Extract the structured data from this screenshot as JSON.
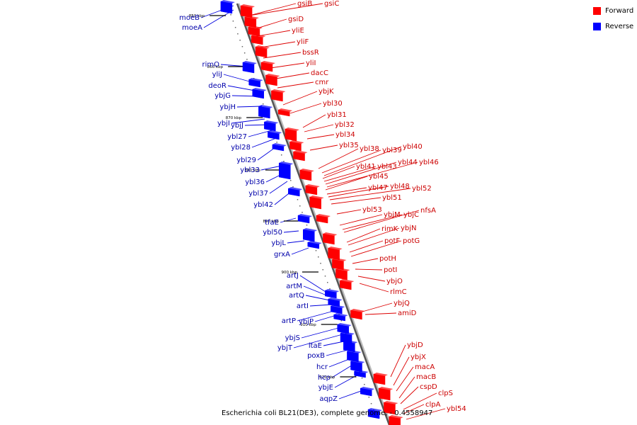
{
  "legend": {
    "forward_label": "Forward",
    "reverse_label": "Reverse",
    "forward_color": "#ff0000",
    "reverse_color": "#0000ff"
  },
  "caption": "Escherichia coli BL21(DE3), complete genome, - 0.4558947",
  "ticks": [
    "850 kbp",
    "860 kbp",
    "870 kbp",
    "880 kbp",
    "890 kbp",
    "900 kbp",
    "910 kbp",
    "920 kbp"
  ],
  "forward_genes": [
    "gsiB",
    "gsiC",
    "gsiD",
    "yliE",
    "yliF",
    "bssR",
    "yliI",
    "dacC",
    "cmr",
    "ybjK",
    "ybl30",
    "ybl31",
    "ybl32",
    "ybl34",
    "ybl35",
    "ybl38",
    "ybl39",
    "ybl40",
    "ybl41",
    "ybl43",
    "ybl44",
    "ybl46",
    "ybl45",
    "ybl47",
    "ybl48",
    "ybl52",
    "ybl51",
    "ybl53",
    "ybjM",
    "ybjC",
    "nfsA",
    "rimK",
    "ybjN",
    "potF",
    "potG",
    "potH",
    "potI",
    "ybjO",
    "rlmC",
    "ybjQ",
    "amiD",
    "ybjD",
    "ybjX",
    "macA",
    "macB",
    "cspD",
    "clpS",
    "clpA",
    "ybl54"
  ],
  "reverse_genes": [
    "moeB",
    "moeA",
    "rimO",
    "yliJ",
    "deoR",
    "ybjG",
    "ybjH",
    "ybjI",
    "ybjJ",
    "ybl27",
    "ybl28",
    "ybl29",
    "ybl33",
    "ybl36",
    "ybl37",
    "ybl42",
    "tfaE",
    "ybl50",
    "ybjL",
    "grxA",
    "artJ",
    "artM",
    "artQ",
    "artI",
    "artP",
    "ybjP",
    "ybjS",
    "ybjT",
    "ltaE",
    "poxB",
    "hcr",
    "hcp",
    "ybjE",
    "aqpZ"
  ]
}
